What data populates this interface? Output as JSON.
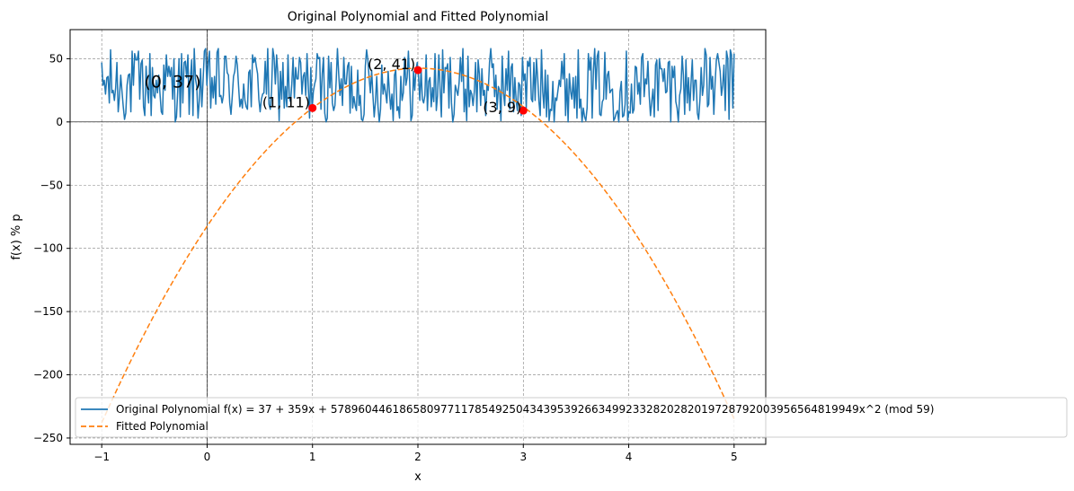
{
  "chart_data": {
    "type": "line",
    "title": "Original Polynomial and Fitted Polynomial",
    "xlabel": "x",
    "ylabel": "f(x) % p",
    "xlim": [
      -1.3,
      5.3
    ],
    "ylim": [
      -255,
      73
    ],
    "xticks": [
      -1,
      0,
      1,
      2,
      3,
      4,
      5
    ],
    "yticks": [
      -250,
      -200,
      -150,
      -100,
      -50,
      0,
      50
    ],
    "grid": true,
    "legend_position": "lower-left",
    "series": [
      {
        "name": "Original Polynomial f(x) = 37 + 359x + 57896044618658097711785492504343953926634992332820282019728792003956564819949x^2 (mod 59)",
        "style": "solid",
        "color": "#1f77b4",
        "x_range": [
          -1,
          5
        ],
        "y_range": [
          0,
          58
        ],
        "note_points": 500
      },
      {
        "name": "Fitted Polynomial",
        "style": "dashed",
        "color": "#ff7f0e",
        "x_range": [
          -1,
          5
        ],
        "formula": "y = -82.5 + 124.5x - 31x^2"
      }
    ],
    "points": [
      {
        "x": 1,
        "y": 11,
        "label": "(1, 11)"
      },
      {
        "x": 2,
        "y": 41,
        "label": "(2, 41)"
      },
      {
        "x": 3,
        "y": 9,
        "label": "(3, 9)"
      }
    ],
    "annotations": [
      {
        "x": 0,
        "y": 37,
        "text": "(0, 37)"
      }
    ],
    "point_color": "#ff0000"
  }
}
